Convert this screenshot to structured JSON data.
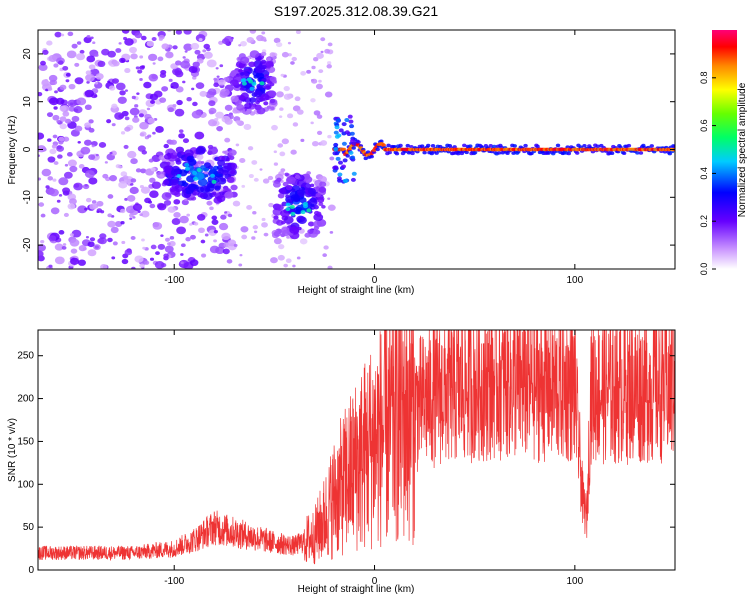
{
  "chart_data": [
    {
      "type": "heatmap",
      "title": "S197.2025.312.08.39.G21",
      "xlabel": "Height of straight line (km)",
      "ylabel": "Frequency (Hz)",
      "xlim": [
        -168,
        150
      ],
      "ylim": [
        -25,
        25
      ],
      "x_ticks": [
        -100,
        0,
        100
      ],
      "y_ticks": [
        -20,
        -10,
        0,
        10,
        20
      ],
      "colorbar": {
        "label": "Normalized spectral amplitude",
        "range": [
          0.0,
          1.0
        ],
        "ticks": [
          "0.0",
          "0.2",
          "0.4",
          "0.6",
          "0.8"
        ],
        "tick_values": [
          0.0,
          0.2,
          0.4,
          0.6,
          0.8
        ]
      },
      "features": [
        {
          "name": "noise-scatter",
          "x_range": [
            -168,
            -70
          ],
          "freq_range": [
            -25,
            25
          ],
          "amplitude": 0.1
        },
        {
          "name": "cluster-neg-ninety",
          "x_range": [
            -105,
            -70
          ],
          "freq_range": [
            -10,
            0
          ],
          "amplitude": 0.25
        },
        {
          "name": "cluster-pos-fifteen",
          "x_range": [
            -70,
            -50
          ],
          "freq_range": [
            8,
            20
          ],
          "amplitude": 0.2
        },
        {
          "name": "cluster-neg-twelve",
          "x_range": [
            -50,
            -25
          ],
          "freq_range": [
            -18,
            -5
          ],
          "amplitude": 0.2
        },
        {
          "name": "zero-line",
          "x_range": [
            -20,
            150
          ],
          "freq": 0,
          "amplitude": 0.95
        }
      ]
    },
    {
      "type": "line",
      "xlabel": "Height of straight line (km)",
      "ylabel": "SNR (10 * v/v)",
      "xlim": [
        -168,
        150
      ],
      "ylim": [
        0,
        280
      ],
      "x_ticks": [
        -100,
        0,
        100
      ],
      "y_ticks": [
        0,
        50,
        100,
        150,
        200,
        250
      ],
      "series": [
        {
          "name": "SNR",
          "color": "#ee3333",
          "envelope_x": [
            -168,
            -120,
            -100,
            -90,
            -80,
            -72,
            -60,
            -50,
            -40,
            -30,
            -25,
            -20,
            -10,
            0,
            10,
            20,
            30,
            40,
            50,
            60,
            80,
            100,
            104,
            106,
            108,
            120,
            150
          ],
          "envelope_mean": [
            20,
            20,
            25,
            35,
            50,
            45,
            38,
            32,
            28,
            40,
            60,
            85,
            120,
            150,
            175,
            190,
            205,
            210,
            215,
            220,
            215,
            212,
            80,
            60,
            212,
            210,
            215
          ]
        }
      ]
    }
  ]
}
